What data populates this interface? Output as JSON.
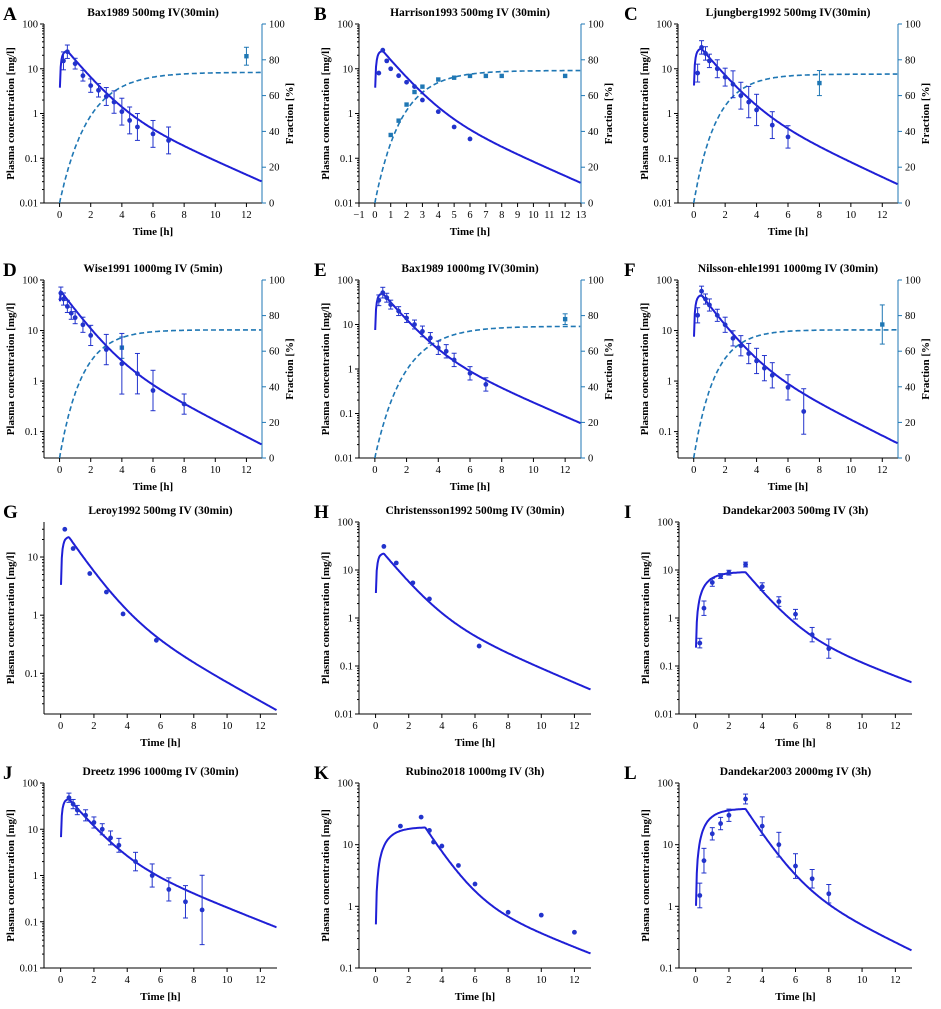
{
  "figure": {
    "model_color": "#1f1fd6",
    "obs_color": "#2233cc",
    "fraction_color": "#1f77b4"
  },
  "chart_data": [
    {
      "id": "A",
      "type": "line",
      "letter": "A",
      "title": "Bax1989 500mg IV(30min)",
      "xlabel": "Time [h]",
      "ylabel": "Plasma concentration [mg/l]",
      "y2label": "Fraction [%]",
      "yscale": "log",
      "xlim": [
        -1,
        13
      ],
      "ylim": [
        0.01,
        100
      ],
      "y2lim": [
        0,
        100
      ],
      "xticks": [
        0,
        2,
        4,
        6,
        8,
        10,
        12
      ],
      "yticks": [
        0.01,
        0.1,
        1,
        10,
        100
      ],
      "ytick_labels": [
        "0.01",
        "0.1",
        "1",
        "10",
        "100"
      ],
      "y2ticks": [
        0,
        20,
        40,
        60,
        80,
        100
      ],
      "infusion_h": 0.5,
      "model_cmax": 25,
      "model_end": 0.03,
      "observed": {
        "x": [
          0.25,
          0.5,
          1,
          1.5,
          2,
          2.5,
          3,
          3.5,
          4,
          4.5,
          5,
          6,
          7
        ],
        "y": [
          15,
          24,
          13,
          7,
          4.2,
          3.3,
          2.4,
          1.8,
          1.1,
          0.7,
          0.5,
          0.35,
          0.25
        ],
        "err": [
          0.2,
          0.15,
          0.12,
          0.12,
          0.15,
          0.15,
          0.2,
          0.25,
          0.3,
          0.3,
          0.3,
          0.3,
          0.3
        ]
      },
      "fraction": {
        "plateau": 73,
        "k": 0.55,
        "obs": {
          "x": [
            12
          ],
          "y": 82,
          "err": [
            5
          ]
        }
      }
    },
    {
      "id": "B",
      "type": "line",
      "letter": "B",
      "title": "Harrison1993 500mg IV (30min)",
      "xlabel": "Time [h]",
      "ylabel": "Plasma concentration [mg/l]",
      "y2label": "Fraction [%]",
      "yscale": "log",
      "xlim": [
        -1,
        13
      ],
      "ylim": [
        0.01,
        100
      ],
      "y2lim": [
        0,
        100
      ],
      "xticks": [
        -1,
        0,
        1,
        2,
        3,
        4,
        5,
        6,
        7,
        8,
        9,
        10,
        11,
        12,
        13
      ],
      "yticks": [
        0.01,
        0.1,
        1,
        10,
        100
      ],
      "ytick_labels": [
        "0.01",
        "0.1",
        "1",
        "10",
        "100"
      ],
      "y2ticks": [
        0,
        20,
        40,
        60,
        80,
        100
      ],
      "infusion_h": 0.5,
      "model_cmax": 25,
      "model_end": 0.028,
      "observed": {
        "x": [
          0.25,
          0.5,
          0.75,
          1,
          1.5,
          2,
          2.5,
          3,
          4,
          5,
          6
        ],
        "y": [
          8,
          26,
          15,
          10,
          7,
          5,
          4,
          2,
          1.1,
          0.5,
          0.27
        ],
        "err": [
          0,
          0,
          0,
          0,
          0,
          0,
          0,
          0,
          0,
          0,
          0
        ]
      },
      "fraction": {
        "plateau": 74,
        "k": 0.6,
        "obs": {
          "x": [
            1,
            1.5,
            2,
            2.5,
            3,
            4,
            5,
            6,
            7,
            8,
            12
          ],
          "y": [
            38,
            46,
            55,
            62,
            65,
            69,
            70,
            71,
            71,
            71,
            71
          ],
          "err": [
            0,
            0,
            0,
            0,
            0,
            0,
            0,
            0,
            0,
            0,
            0
          ]
        }
      }
    },
    {
      "id": "C",
      "type": "line",
      "letter": "C",
      "title": "Ljungberg1992 500mg IV(30min)",
      "xlabel": "Time [h]",
      "ylabel": "Plasma concentration [mg/l]",
      "y2label": "Fraction [%]",
      "yscale": "log",
      "xlim": [
        -1,
        13
      ],
      "ylim": [
        0.01,
        100
      ],
      "y2lim": [
        0,
        100
      ],
      "xticks": [
        0,
        2,
        4,
        6,
        8,
        10,
        12
      ],
      "yticks": [
        0.01,
        0.1,
        1,
        10,
        100
      ],
      "ytick_labels": [
        "0.01",
        "0.1",
        "1",
        "10",
        "100"
      ],
      "y2ticks": [
        0,
        20,
        40,
        60,
        80,
        100
      ],
      "infusion_h": 0.5,
      "model_cmax": 28,
      "model_end": 0.026,
      "observed": {
        "x": [
          0.25,
          0.5,
          0.75,
          1,
          1.5,
          2,
          2.5,
          3,
          3.5,
          4,
          5,
          6
        ],
        "y": [
          8,
          30,
          22,
          15,
          10,
          6.5,
          4.5,
          2.5,
          1.8,
          1.2,
          0.55,
          0.3
        ],
        "err": [
          0.2,
          0.15,
          0.15,
          0.15,
          0.2,
          0.2,
          0.3,
          0.3,
          0.35,
          0.35,
          0.3,
          0.25
        ]
      },
      "fraction": {
        "plateau": 72,
        "k": 0.7,
        "obs": {
          "x": [
            8
          ],
          "y": 67,
          "err": [
            7
          ]
        }
      }
    },
    {
      "id": "D",
      "type": "line",
      "letter": "D",
      "title": "Wise1991 1000mg IV (5min)",
      "xlabel": "Time [h]",
      "ylabel": "Plasma concentration [mg/l]",
      "y2label": "Fraction [%]",
      "yscale": "log",
      "xlim": [
        -1,
        13
      ],
      "ylim": [
        0.03,
        100
      ],
      "y2lim": [
        0,
        100
      ],
      "xticks": [
        0,
        2,
        4,
        6,
        8,
        10,
        12
      ],
      "yticks": [
        0.1,
        1,
        10,
        100
      ],
      "ytick_labels": [
        "0.1",
        "1",
        "10",
        "100"
      ],
      "y2ticks": [
        0,
        20,
        40,
        60,
        80,
        100
      ],
      "infusion_h": 0.083,
      "model_cmax": 60,
      "model_end": 0.055,
      "observed": {
        "x": [
          0.083,
          0.25,
          0.5,
          0.75,
          1,
          1.5,
          2,
          3,
          4,
          5,
          6,
          8
        ],
        "y": [
          55,
          42,
          30,
          22,
          18,
          13,
          8,
          4.2,
          2.2,
          1.4,
          0.65,
          0.35
        ],
        "err": [
          0.12,
          0.12,
          0.12,
          0.12,
          0.12,
          0.15,
          0.2,
          0.3,
          0.6,
          0.4,
          0.4,
          0.2
        ]
      },
      "fraction": {
        "plateau": 72,
        "k": 0.7,
        "obs": {
          "x": [
            4
          ],
          "y": 62,
          "err": [
            6
          ]
        }
      }
    },
    {
      "id": "E",
      "type": "line",
      "letter": "E",
      "title": "Bax1989 1000mg IV(30min)",
      "xlabel": "Time [h]",
      "ylabel": "Plasma concentration [mg/l]",
      "y2label": "Fraction [%]",
      "yscale": "log",
      "xlim": [
        -1,
        13
      ],
      "ylim": [
        0.01,
        100
      ],
      "y2lim": [
        0,
        100
      ],
      "xticks": [
        0,
        2,
        4,
        6,
        8,
        10,
        12
      ],
      "yticks": [
        0.01,
        0.1,
        1,
        10,
        100
      ],
      "ytick_labels": [
        "0.01",
        "0.1",
        "1",
        "10",
        "100"
      ],
      "y2ticks": [
        0,
        20,
        40,
        60,
        80,
        100
      ],
      "infusion_h": 0.5,
      "model_cmax": 50,
      "model_end": 0.06,
      "observed": {
        "x": [
          0.25,
          0.5,
          0.75,
          1,
          1.5,
          2,
          2.5,
          3,
          3.5,
          4,
          4.5,
          5,
          6,
          7
        ],
        "y": [
          35,
          52,
          40,
          28,
          20,
          14,
          10,
          7,
          5,
          3,
          2.5,
          1.6,
          0.8,
          0.45
        ],
        "err": [
          0.12,
          0.12,
          0.1,
          0.1,
          0.1,
          0.1,
          0.1,
          0.12,
          0.12,
          0.15,
          0.15,
          0.15,
          0.15,
          0.15
        ]
      },
      "fraction": {
        "plateau": 74,
        "k": 0.55,
        "obs": {
          "x": [
            12
          ],
          "y": 78,
          "err": [
            3
          ]
        }
      }
    },
    {
      "id": "F",
      "type": "line",
      "letter": "F",
      "title": "Nilsson-ehle1991 1000mg IV (30min)",
      "xlabel": "Time [h]",
      "ylabel": "Plasma concentration [mg/l]",
      "y2label": "Fraction [%]",
      "yscale": "log",
      "xlim": [
        -1,
        13
      ],
      "ylim": [
        0.03,
        100
      ],
      "y2lim": [
        0,
        100
      ],
      "xticks": [
        0,
        2,
        4,
        6,
        8,
        10,
        12
      ],
      "yticks": [
        0.1,
        1,
        10,
        100
      ],
      "ytick_labels": [
        "0.1",
        "1",
        "10",
        "100"
      ],
      "y2ticks": [
        0,
        20,
        40,
        60,
        80,
        100
      ],
      "infusion_h": 0.5,
      "model_cmax": 50,
      "model_end": 0.058,
      "observed": {
        "x": [
          0.25,
          0.5,
          0.75,
          1,
          1.5,
          2,
          2.5,
          3,
          3.5,
          4,
          4.5,
          5,
          6,
          7
        ],
        "y": [
          20,
          60,
          42,
          32,
          20,
          13,
          7,
          5,
          3.5,
          2.5,
          1.8,
          1.3,
          0.75,
          0.25
        ],
        "err": [
          0.15,
          0.1,
          0.1,
          0.12,
          0.12,
          0.15,
          0.15,
          0.2,
          0.2,
          0.25,
          0.25,
          0.25,
          0.25,
          0.45
        ]
      },
      "fraction": {
        "plateau": 72,
        "k": 0.75,
        "obs": {
          "x": [
            12
          ],
          "y": 75,
          "err": [
            11
          ]
        }
      }
    },
    {
      "id": "G",
      "type": "line",
      "letter": "G",
      "title": "Leroy1992 500mg IV (30min)",
      "xlabel": "Time [h]",
      "ylabel": "Plasma concentration [mg/l]",
      "yscale": "log",
      "xlim": [
        -1,
        13
      ],
      "ylim": [
        0.02,
        40
      ],
      "xticks": [
        0,
        2,
        4,
        6,
        8,
        10,
        12
      ],
      "yticks": [
        0.1,
        1,
        10
      ],
      "ytick_labels": [
        "0.1",
        "1",
        "10"
      ],
      "infusion_h": 0.5,
      "model_cmax": 22,
      "model_end": 0.023,
      "observed": {
        "x": [
          0.25,
          0.75,
          1.75,
          2.75,
          3.75,
          5.75
        ],
        "y": [
          30,
          14,
          5.2,
          2.5,
          1.05,
          0.37
        ],
        "err": [
          0,
          0,
          0,
          0,
          0,
          0
        ]
      }
    },
    {
      "id": "H",
      "type": "line",
      "letter": "H",
      "title": "Christensson1992 500mg IV (30min)",
      "xlabel": "Time [h]",
      "ylabel": "Plasma concentration [mg/l]",
      "yscale": "log",
      "xlim": [
        -1,
        13
      ],
      "ylim": [
        0.01,
        100
      ],
      "xticks": [
        0,
        2,
        4,
        6,
        8,
        10,
        12
      ],
      "yticks": [
        0.01,
        0.1,
        1,
        10,
        100
      ],
      "ytick_labels": [
        "0.01",
        "0.1",
        "1",
        "10",
        "100"
      ],
      "infusion_h": 0.5,
      "model_cmax": 22,
      "model_end": 0.032,
      "observed": {
        "x": [
          0.5,
          1.25,
          2.25,
          3.25,
          6.25
        ],
        "y": [
          31,
          14,
          5.4,
          2.5,
          0.26
        ],
        "err": [
          0,
          0,
          0,
          0,
          0
        ]
      }
    },
    {
      "id": "I",
      "type": "line",
      "letter": "I",
      "title": "Dandekar2003 500mg IV (3h)",
      "xlabel": "Time [h]",
      "ylabel": "Plasma concentration [mg/l]",
      "yscale": "log",
      "xlim": [
        -1,
        13
      ],
      "ylim": [
        0.01,
        100
      ],
      "xticks": [
        0,
        2,
        4,
        6,
        8,
        10,
        12
      ],
      "yticks": [
        0.01,
        0.1,
        1,
        10,
        100
      ],
      "ytick_labels": [
        "0.01",
        "0.1",
        "1",
        "10",
        "100"
      ],
      "infusion_h": 3,
      "model_cmax": 9,
      "model_end": 0.045,
      "observed": {
        "x": [
          0.25,
          0.5,
          1,
          1.5,
          2,
          3,
          4,
          5,
          6,
          7,
          8
        ],
        "y": [
          0.3,
          1.6,
          5.5,
          7.5,
          8.8,
          13,
          4.5,
          2.2,
          1.2,
          0.45,
          0.23
        ],
        "err": [
          0.1,
          0.15,
          0.08,
          0.05,
          0.05,
          0.05,
          0.08,
          0.1,
          0.1,
          0.15,
          0.2
        ]
      }
    },
    {
      "id": "J",
      "type": "line",
      "letter": "J",
      "title": "Dreetz 1996 1000mg IV (30min)",
      "xlabel": "Time [h]",
      "ylabel": "Plasma concentration [mg/l]",
      "yscale": "log",
      "xlim": [
        -1,
        13
      ],
      "ylim": [
        0.01,
        100
      ],
      "xticks": [
        0,
        2,
        4,
        6,
        8,
        10,
        12
      ],
      "yticks": [
        0.01,
        0.1,
        1,
        10,
        100
      ],
      "ytick_labels": [
        "0.01",
        "0.1",
        "1",
        "10",
        "100"
      ],
      "infusion_h": 0.5,
      "model_cmax": 45,
      "model_end": 0.075,
      "observed": {
        "x": [
          0.5,
          0.75,
          1,
          1.5,
          2,
          2.5,
          3,
          3.5,
          4.5,
          5.5,
          6.5,
          7.5,
          8.5
        ],
        "y": [
          48,
          35,
          26,
          20,
          14,
          10,
          6.5,
          4.5,
          2,
          1,
          0.5,
          0.27,
          0.18
        ],
        "err": [
          0.1,
          0.1,
          0.1,
          0.12,
          0.12,
          0.12,
          0.15,
          0.15,
          0.2,
          0.25,
          0.25,
          0.35,
          0.75
        ]
      }
    },
    {
      "id": "K",
      "type": "line",
      "letter": "K",
      "title": "Rubino2018 1000mg IV (3h)",
      "xlabel": "Time [h]",
      "ylabel": "Plasma concentration [mg/l]",
      "yscale": "log",
      "xlim": [
        -1,
        13
      ],
      "ylim": [
        0.1,
        100
      ],
      "xticks": [
        0,
        2,
        4,
        6,
        8,
        10,
        12
      ],
      "yticks": [
        0.1,
        1,
        10,
        100
      ],
      "ytick_labels": [
        "0.1",
        "1",
        "10",
        "100"
      ],
      "infusion_h": 3,
      "model_cmax": 19,
      "model_end": 0.17,
      "observed": {
        "x": [
          1.5,
          2.75,
          3.25,
          3.5,
          4,
          5,
          6,
          8,
          10,
          12
        ],
        "y": [
          20,
          28,
          17,
          11,
          9.5,
          4.6,
          2.3,
          0.8,
          0.72,
          0.38
        ],
        "err": [
          0,
          0,
          0,
          0,
          0,
          0,
          0,
          0,
          0,
          0
        ]
      }
    },
    {
      "id": "L",
      "type": "line",
      "letter": "L",
      "title": "Dandekar2003 2000mg IV (3h)",
      "xlabel": "Time [h]",
      "ylabel": "Plasma concentration [mg/l]",
      "yscale": "log",
      "xlim": [
        -1,
        13
      ],
      "ylim": [
        0.1,
        100
      ],
      "xticks": [
        0,
        2,
        4,
        6,
        8,
        10,
        12
      ],
      "yticks": [
        0.1,
        1,
        10,
        100
      ],
      "ytick_labels": [
        "0.1",
        "1",
        "10",
        "100"
      ],
      "infusion_h": 3,
      "model_cmax": 38,
      "model_end": 0.19,
      "observed": {
        "x": [
          0.25,
          0.5,
          1,
          1.5,
          2,
          3,
          4,
          5,
          6,
          7,
          8
        ],
        "y": [
          1.5,
          5.5,
          15,
          22,
          30,
          55,
          20,
          10,
          4.5,
          2.8,
          1.6
        ],
        "err": [
          0.2,
          0.2,
          0.1,
          0.1,
          0.1,
          0.08,
          0.15,
          0.2,
          0.2,
          0.15,
          0.15
        ]
      }
    }
  ]
}
